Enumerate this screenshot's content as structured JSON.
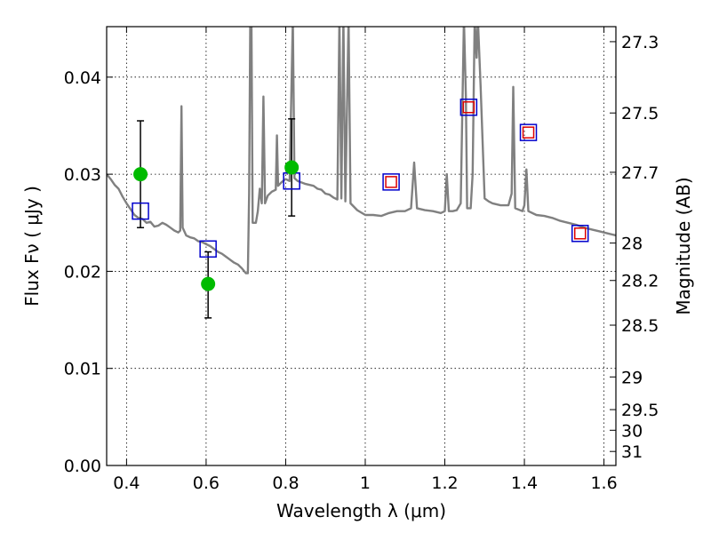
{
  "chart_data": {
    "type": "scatter",
    "xlabel": "Wavelength  λ (μm)",
    "ylabel": "Flux  Fν  ( μJy )",
    "y2label": "Magnitude (AB)",
    "xlim": [
      0.35,
      1.63
    ],
    "ylim": [
      0.0,
      0.0452
    ],
    "grid": true,
    "x_ticks": [
      {
        "value": 0.4,
        "label": "0.4"
      },
      {
        "value": 0.6,
        "label": "0.6"
      },
      {
        "value": 0.8,
        "label": "0.8"
      },
      {
        "value": 1.0,
        "label": "1"
      },
      {
        "value": 1.2,
        "label": "1.2"
      },
      {
        "value": 1.4,
        "label": "1.4"
      },
      {
        "value": 1.6,
        "label": "1.6"
      }
    ],
    "y_ticks": [
      {
        "value": 0.0,
        "label": "0.00"
      },
      {
        "value": 0.01,
        "label": "0.01"
      },
      {
        "value": 0.02,
        "label": "0.02"
      },
      {
        "value": 0.03,
        "label": "0.03"
      },
      {
        "value": 0.04,
        "label": "0.04"
      }
    ],
    "y2_ticks": [
      {
        "value": 27.3,
        "label": "27.3"
      },
      {
        "value": 27.5,
        "label": "27.5"
      },
      {
        "value": 27.7,
        "label": "27.7"
      },
      {
        "value": 28.0,
        "label": "28"
      },
      {
        "value": 28.2,
        "label": "28.2"
      },
      {
        "value": 28.5,
        "label": "28.5"
      },
      {
        "value": 29.0,
        "label": "29"
      },
      {
        "value": 29.5,
        "label": "29.5"
      },
      {
        "value": 30.0,
        "label": "30"
      },
      {
        "value": 31.0,
        "label": "31"
      }
    ],
    "colors": {
      "model": "#808080",
      "observed": "#00bb00",
      "errorbar": "#000000",
      "model_band": "#0000cc",
      "model_band_inner": "#dd0000"
    },
    "series": [
      {
        "kind": "model_spectrum",
        "points": [
          [
            0.35,
            0.03
          ],
          [
            0.36,
            0.0295
          ],
          [
            0.37,
            0.0289
          ],
          [
            0.38,
            0.0285
          ],
          [
            0.39,
            0.0277
          ],
          [
            0.4,
            0.027
          ],
          [
            0.41,
            0.0264
          ],
          [
            0.42,
            0.0258
          ],
          [
            0.43,
            0.0255
          ],
          [
            0.44,
            0.0254
          ],
          [
            0.45,
            0.025
          ],
          [
            0.46,
            0.0251
          ],
          [
            0.47,
            0.0246
          ],
          [
            0.48,
            0.0247
          ],
          [
            0.49,
            0.025
          ],
          [
            0.5,
            0.0248
          ],
          [
            0.51,
            0.0245
          ],
          [
            0.52,
            0.0242
          ],
          [
            0.53,
            0.024
          ],
          [
            0.535,
            0.0242
          ],
          [
            0.538,
            0.037
          ],
          [
            0.541,
            0.0245
          ],
          [
            0.55,
            0.0237
          ],
          [
            0.56,
            0.0235
          ],
          [
            0.57,
            0.0234
          ],
          [
            0.58,
            0.0231
          ],
          [
            0.59,
            0.023
          ],
          [
            0.6,
            0.0228
          ],
          [
            0.61,
            0.0226
          ],
          [
            0.62,
            0.0223
          ],
          [
            0.63,
            0.022
          ],
          [
            0.64,
            0.0218
          ],
          [
            0.65,
            0.0215
          ],
          [
            0.66,
            0.0212
          ],
          [
            0.67,
            0.0209
          ],
          [
            0.68,
            0.0207
          ],
          [
            0.69,
            0.0203
          ],
          [
            0.7,
            0.0198
          ],
          [
            0.705,
            0.0198
          ],
          [
            0.708,
            0.028
          ],
          [
            0.711,
            0.046
          ],
          [
            0.714,
            0.046
          ],
          [
            0.717,
            0.025
          ],
          [
            0.725,
            0.025
          ],
          [
            0.73,
            0.0262
          ],
          [
            0.735,
            0.0285
          ],
          [
            0.74,
            0.027
          ],
          [
            0.744,
            0.038
          ],
          [
            0.748,
            0.027
          ],
          [
            0.755,
            0.0278
          ],
          [
            0.765,
            0.0282
          ],
          [
            0.775,
            0.0284
          ],
          [
            0.778,
            0.034
          ],
          [
            0.781,
            0.0288
          ],
          [
            0.79,
            0.0292
          ],
          [
            0.8,
            0.0295
          ],
          [
            0.81,
            0.0293
          ],
          [
            0.818,
            0.046
          ],
          [
            0.822,
            0.0296
          ],
          [
            0.83,
            0.0293
          ],
          [
            0.85,
            0.029
          ],
          [
            0.87,
            0.0288
          ],
          [
            0.88,
            0.0285
          ],
          [
            0.89,
            0.0284
          ],
          [
            0.9,
            0.028
          ],
          [
            0.91,
            0.0279
          ],
          [
            0.92,
            0.0276
          ],
          [
            0.93,
            0.0274
          ],
          [
            0.935,
            0.046
          ],
          [
            0.94,
            0.0275
          ],
          [
            0.945,
            0.046
          ],
          [
            0.95,
            0.0272
          ],
          [
            0.958,
            0.046
          ],
          [
            0.963,
            0.027
          ],
          [
            0.98,
            0.0263
          ],
          [
            1.0,
            0.0258
          ],
          [
            1.02,
            0.0258
          ],
          [
            1.04,
            0.0257
          ],
          [
            1.06,
            0.026
          ],
          [
            1.08,
            0.0262
          ],
          [
            1.1,
            0.0262
          ],
          [
            1.115,
            0.0265
          ],
          [
            1.123,
            0.0312
          ],
          [
            1.13,
            0.0265
          ],
          [
            1.15,
            0.0263
          ],
          [
            1.17,
            0.0262
          ],
          [
            1.19,
            0.026
          ],
          [
            1.2,
            0.0262
          ],
          [
            1.205,
            0.03
          ],
          [
            1.21,
            0.0262
          ],
          [
            1.22,
            0.0262
          ],
          [
            1.23,
            0.0263
          ],
          [
            1.24,
            0.027
          ],
          [
            1.248,
            0.046
          ],
          [
            1.253,
            0.038
          ],
          [
            1.256,
            0.0265
          ],
          [
            1.265,
            0.0265
          ],
          [
            1.27,
            0.03
          ],
          [
            1.275,
            0.046
          ],
          [
            1.28,
            0.042
          ],
          [
            1.283,
            0.046
          ],
          [
            1.29,
            0.039
          ],
          [
            1.3,
            0.0275
          ],
          [
            1.31,
            0.0272
          ],
          [
            1.32,
            0.027
          ],
          [
            1.34,
            0.0268
          ],
          [
            1.36,
            0.0268
          ],
          [
            1.368,
            0.028
          ],
          [
            1.372,
            0.039
          ],
          [
            1.377,
            0.0265
          ],
          [
            1.395,
            0.0262
          ],
          [
            1.4,
            0.0268
          ],
          [
            1.405,
            0.0305
          ],
          [
            1.41,
            0.0262
          ],
          [
            1.43,
            0.0258
          ],
          [
            1.45,
            0.0257
          ],
          [
            1.47,
            0.0255
          ],
          [
            1.49,
            0.0252
          ],
          [
            1.51,
            0.025
          ],
          [
            1.53,
            0.0248
          ],
          [
            1.55,
            0.0245
          ],
          [
            1.57,
            0.0243
          ],
          [
            1.59,
            0.0241
          ],
          [
            1.61,
            0.0239
          ],
          [
            1.63,
            0.0237
          ]
        ]
      },
      {
        "kind": "model_band_flux",
        "points": [
          [
            0.435,
            0.0262
          ],
          [
            0.605,
            0.0223
          ],
          [
            0.815,
            0.0293
          ],
          [
            1.065,
            0.0292
          ],
          [
            1.26,
            0.0369
          ],
          [
            1.41,
            0.0343
          ],
          [
            1.54,
            0.0239
          ]
        ],
        "inner_marker": [
          false,
          false,
          false,
          true,
          true,
          true,
          true
        ]
      },
      {
        "kind": "observed_flux",
        "points": [
          [
            0.435,
            0.03,
            0.0055,
            0.0055
          ],
          [
            0.605,
            0.0187,
            0.0033,
            0.0035
          ],
          [
            0.815,
            0.0307,
            0.005,
            0.005
          ]
        ]
      }
    ]
  }
}
